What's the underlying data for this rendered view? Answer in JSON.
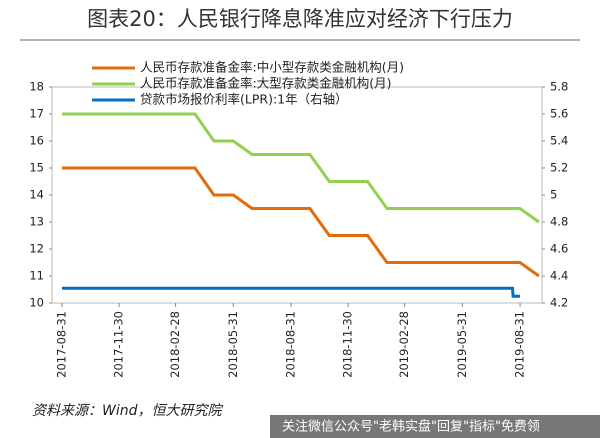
{
  "chart_data": {
    "type": "line",
    "title": "图表20：人民银行降息降准应对经济下行压力",
    "source": "资料来源：Wind，恒大研究院",
    "watermark": "关注微信公众号\"老韩实盘\"回复\"指标\"免费领",
    "xlim": [
      "2017-08-15",
      "2019-10-05"
    ],
    "xticks": [
      "2017-08-31",
      "2017-11-30",
      "2018-02-28",
      "2018-05-31",
      "2018-08-31",
      "2018-11-30",
      "2019-02-28",
      "2019-05-31",
      "2019-08-31"
    ],
    "ylim": [
      10,
      18
    ],
    "yticks": [
      10,
      11,
      12,
      13,
      14,
      15,
      16,
      17,
      18
    ],
    "y2lim": [
      4.2,
      5.8
    ],
    "y2ticks": [
      4.2,
      4.4,
      4.6,
      4.8,
      5,
      5.2,
      5.4,
      5.6,
      5.8
    ],
    "series": [
      {
        "name": "人民币存款准备金率:中小型存款类金融机构(月)",
        "color": "#E36C0A",
        "x": [
          "2017-08-31",
          "2018-03-31",
          "2018-04-30",
          "2018-05-31",
          "2018-06-30",
          "2018-09-30",
          "2018-10-31",
          "2018-12-31",
          "2019-01-31",
          "2019-08-31",
          "2019-09-30"
        ],
        "values": [
          15,
          15,
          14,
          14,
          13.5,
          13.5,
          12.5,
          12.5,
          11.5,
          11.5,
          11
        ]
      },
      {
        "name": "人民币存款准备金率:大型存款类金融机构(月)",
        "color": "#92D050",
        "x": [
          "2017-08-31",
          "2018-03-31",
          "2018-04-30",
          "2018-05-31",
          "2018-06-30",
          "2018-09-30",
          "2018-10-31",
          "2018-12-31",
          "2019-01-31",
          "2019-08-31",
          "2019-09-30"
        ],
        "values": [
          17,
          17,
          16,
          16,
          15.5,
          15.5,
          14.5,
          14.5,
          13.5,
          13.5,
          13
        ]
      },
      {
        "name": "贷款市场报价利率(LPR):1年（右轴）",
        "color": "#0070C0",
        "axis": "y2",
        "x": [
          "2017-08-31",
          "2019-08-19",
          "2019-08-20",
          "2019-08-31"
        ],
        "values": [
          4.31,
          4.31,
          4.25,
          4.25
        ]
      }
    ]
  }
}
